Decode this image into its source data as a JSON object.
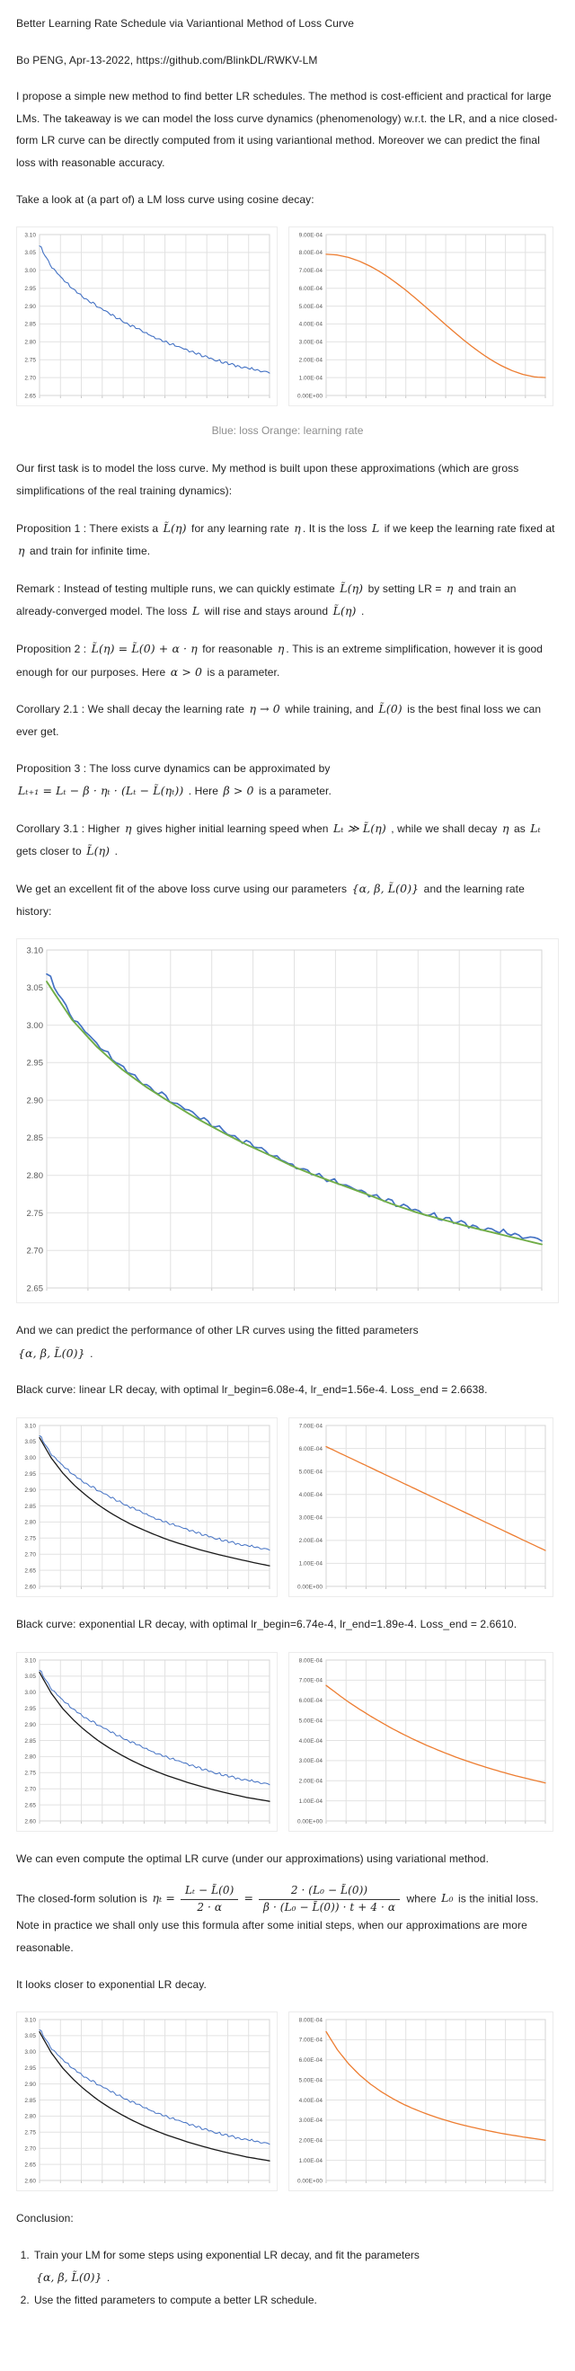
{
  "doc": {
    "title": "Better Learning Rate Schedule via Variantional Method of Loss Curve",
    "byline": "Bo PENG, Apr-13-2022, https://github.com/BlinkDL/RWKV-LM",
    "intro": "I propose a simple new method to find better LR schedules. The method is cost-efficient and practical for large LMs. The takeaway is we can model the loss curve dynamics (phenomenology) w.r.t. the LR, and a nice closed-form LR curve can be directly computed from it using variantional method. Moreover we can predict the final loss with reasonable accuracy.",
    "take_a_look": "Take a look at (a part of) a LM loss curve using cosine decay:",
    "caption1": "Blue: loss Orange: learning rate",
    "first_task": "Our first task is to model the loss curve. My method is built upon these approximations (which are gross simplifications of the real training dynamics):",
    "prop1": {
      "segments": [
        {
          "t": "Proposition 1 : There exists a "
        },
        {
          "m": "L̃(η)"
        },
        {
          "t": " for any learning rate "
        },
        {
          "m": "η"
        },
        {
          "t": ". It is the loss "
        },
        {
          "m": "L"
        },
        {
          "t": " if we keep the learning rate fixed at "
        },
        {
          "m": "η"
        },
        {
          "t": " and train for infinite time."
        }
      ]
    },
    "remark": {
      "segments": [
        {
          "t": "Remark : Instead of testing multiple runs, we can quickly estimate "
        },
        {
          "m": "L̃(η)"
        },
        {
          "t": " by setting LR = "
        },
        {
          "m": "η"
        },
        {
          "t": " and train an already-converged model. The loss "
        },
        {
          "m": "L"
        },
        {
          "t": " will rise and stays around "
        },
        {
          "m": "L̃(η)"
        },
        {
          "t": " ."
        }
      ]
    },
    "prop2": {
      "segments": [
        {
          "t": "Proposition 2 : "
        },
        {
          "m": "L̃(η) = L̃(0) + α · η"
        },
        {
          "t": " for reasonable "
        },
        {
          "m": "η"
        },
        {
          "t": ". This is an extreme simplification, however it is good enough for our purposes. Here "
        },
        {
          "m": "α > 0"
        },
        {
          "t": " is a parameter."
        }
      ]
    },
    "cor21": {
      "segments": [
        {
          "t": "Corollary 2.1 : We shall decay the learning rate "
        },
        {
          "m": "η → 0"
        },
        {
          "t": " while training, and "
        },
        {
          "m": "L̃(0)"
        },
        {
          "t": " is the best final loss we can ever get."
        }
      ]
    },
    "prop3": {
      "segments": [
        {
          "t": "Proposition 3 : The loss curve dynamics can be approximated by"
        },
        {
          "br": true
        },
        {
          "m": "Lₜ₊₁ = Lₜ − β · ηₜ · (Lₜ − L̃(ηₜ))"
        },
        {
          "t": " . Here "
        },
        {
          "m": "β > 0"
        },
        {
          "t": " is a parameter."
        }
      ]
    },
    "cor31": {
      "segments": [
        {
          "t": "Corollary 3.1 : Higher "
        },
        {
          "m": "η"
        },
        {
          "t": " gives higher initial learning speed when "
        },
        {
          "m": "Lₜ ≫ L̃(η)"
        },
        {
          "t": " , while we shall decay "
        },
        {
          "m": "η"
        },
        {
          "t": " as "
        },
        {
          "m": "Lₜ"
        },
        {
          "t": " gets closer to "
        },
        {
          "m": "L̃(η)"
        },
        {
          "t": " ."
        }
      ]
    },
    "excellent_fit": {
      "segments": [
        {
          "t": "We get an excellent fit of the above loss curve using our parameters "
        },
        {
          "m": "{α, β, L̃(0)}"
        },
        {
          "t": " and the learning rate history:"
        }
      ]
    },
    "predict": {
      "segments": [
        {
          "t": "And we can predict the performance of other LR curves using the fitted parameters"
        },
        {
          "br": true
        },
        {
          "m": "{α, β, L̃(0)}"
        },
        {
          "t": " ."
        }
      ]
    },
    "linear_label": "Black curve: linear LR decay, with optimal lr_begin=6.08e-4, lr_end=1.56e-4. Loss_end = 2.6638.",
    "exp_label": "Black curve: exponential LR decay, with optimal lr_begin=6.74e-4, lr_end=1.89e-4. Loss_end = 2.6610.",
    "compute_optimal": "We can even compute the optimal LR curve (under our approximations) using variational method.",
    "closed_form": {
      "segments": [
        {
          "t": "The closed-form solution is "
        },
        {
          "m": "ηₜ ="
        },
        {
          "frac": {
            "num": "Lₜ − L̃(0)",
            "den": "2 · α"
          }
        },
        {
          "m": "="
        },
        {
          "frac": {
            "num": "2 · (L₀ − L̃(0))",
            "den": "β · (L₀ − L̃(0)) · t + 4 · α"
          }
        },
        {
          "t": " where "
        },
        {
          "m": "L₀"
        },
        {
          "t": " is the initial loss. Note in practice we shall only use this formula after some initial steps, when our approximations are more reasonable."
        }
      ]
    },
    "looks_closer": "It looks closer to exponential LR decay.",
    "conclusion_head": "Conclusion:",
    "item1": {
      "segments": [
        {
          "t": "Train your LM for some steps using exponential LR decay, and fit the parameters"
        },
        {
          "br": true
        },
        {
          "m": "{α, β, L̃(0)}"
        },
        {
          "t": " ."
        }
      ]
    },
    "item2": "Use the fitted parameters to compute a better LR schedule."
  },
  "chart_data": {
    "note": "Loss curves in nats; LR curves in units of 1e-4.",
    "colors": {
      "loss_blue": "#4472c4",
      "lr_orange": "#ed7d31",
      "fit_green": "#70ad47",
      "pred_black": "#1a1a1a"
    },
    "curves": {
      "loss_observed": {
        "x_range": [
          0,
          1
        ],
        "y": [
          3.07,
          3.012,
          2.975,
          2.945,
          2.921,
          2.9,
          2.88,
          2.862,
          2.845,
          2.83,
          2.813,
          2.8,
          2.788,
          2.776,
          2.763,
          2.752,
          2.743,
          2.734,
          2.727,
          2.72,
          2.715
        ]
      },
      "loss_fit": {
        "x_range": [
          0,
          1
        ],
        "y": [
          3.058,
          3.008,
          2.972,
          2.942,
          2.918,
          2.897,
          2.877,
          2.859,
          2.842,
          2.827,
          2.811,
          2.798,
          2.786,
          2.774,
          2.761,
          2.75,
          2.741,
          2.732,
          2.724,
          2.716,
          2.708
        ]
      },
      "loss_pred_linear": {
        "x_range": [
          0,
          1
        ],
        "y": [
          3.062,
          3.0,
          2.953,
          2.915,
          2.884,
          2.856,
          2.832,
          2.811,
          2.792,
          2.776,
          2.761,
          2.747,
          2.735,
          2.724,
          2.713,
          2.704,
          2.695,
          2.687,
          2.679,
          2.671,
          2.664
        ]
      },
      "loss_pred_exp": {
        "x_range": [
          0,
          1
        ],
        "y": [
          3.062,
          2.998,
          2.95,
          2.912,
          2.88,
          2.852,
          2.828,
          2.807,
          2.788,
          2.771,
          2.756,
          2.742,
          2.73,
          2.718,
          2.708,
          2.698,
          2.689,
          2.681,
          2.673,
          2.667,
          2.661
        ]
      },
      "lr_cosine": {
        "x_range": [
          0,
          1
        ],
        "y_unit": "1e-4",
        "y": [
          7.9,
          7.86,
          7.73,
          7.52,
          7.24,
          6.89,
          6.48,
          6.02,
          5.52,
          4.99,
          4.45,
          3.91,
          3.38,
          2.88,
          2.42,
          2.01,
          1.66,
          1.38,
          1.17,
          1.04,
          1.0
        ]
      },
      "lr_linear": {
        "x_range": [
          0,
          1
        ],
        "y_unit": "1e-4",
        "y": [
          6.08,
          1.56
        ]
      },
      "lr_exponential": {
        "x_range": [
          0,
          1
        ],
        "y_unit": "1e-4",
        "y": [
          6.74,
          6.33,
          5.93,
          5.57,
          5.23,
          4.91,
          4.6,
          4.32,
          4.05,
          3.8,
          3.57,
          3.35,
          3.14,
          2.95,
          2.77,
          2.6,
          2.44,
          2.29,
          2.15,
          2.02,
          1.89
        ]
      },
      "lr_optimal": {
        "x_range": [
          0,
          1
        ],
        "y_unit": "1e-4",
        "y": [
          7.4,
          6.52,
          5.83,
          5.27,
          4.81,
          4.42,
          4.09,
          3.8,
          3.56,
          3.34,
          3.15,
          2.98,
          2.82,
          2.69,
          2.56,
          2.45,
          2.34,
          2.25,
          2.16,
          2.08,
          2.0
        ]
      }
    },
    "charts": {
      "pair1_left": {
        "type": "line",
        "yticks": [
          "3.10",
          "3.05",
          "3.00",
          "2.95",
          "2.90",
          "2.85",
          "2.80",
          "2.75",
          "2.70",
          "2.65"
        ],
        "ylim": [
          2.65,
          3.1
        ],
        "cols": 11,
        "series": [
          {
            "curve": "loss_observed",
            "color": "#4472c4",
            "noisy": true,
            "amp": 0.0045,
            "width": 1.1
          }
        ]
      },
      "pair1_right": {
        "type": "line",
        "yticks": [
          "9.00E-04",
          "8.00E-04",
          "7.00E-04",
          "6.00E-04",
          "5.00E-04",
          "4.00E-04",
          "3.00E-04",
          "2.00E-04",
          "1.00E-04",
          "0.00E+00"
        ],
        "ylim": [
          0,
          9
        ],
        "cols": 11,
        "series": [
          {
            "curve": "lr_cosine",
            "color": "#ed7d31",
            "width": 1.3
          }
        ]
      },
      "fit_big": {
        "type": "line",
        "yticks": [
          "3.10",
          "3.05",
          "3.00",
          "2.95",
          "2.90",
          "2.85",
          "2.80",
          "2.75",
          "2.70",
          "2.65"
        ],
        "ylim": [
          2.65,
          3.1
        ],
        "cols": 12,
        "series": [
          {
            "curve": "loss_observed",
            "color": "#4472c4",
            "noisy": true,
            "amp": 0.0045,
            "width": 1.7
          },
          {
            "curve": "loss_fit",
            "color": "#70ad47",
            "width": 1.9
          }
        ]
      },
      "pair2_left": {
        "type": "line",
        "yticks": [
          "3.10",
          "3.05",
          "3.00",
          "2.95",
          "2.90",
          "2.85",
          "2.80",
          "2.75",
          "2.70",
          "2.65",
          "2.60"
        ],
        "ylim": [
          2.6,
          3.1
        ],
        "cols": 11,
        "series": [
          {
            "curve": "loss_observed",
            "color": "#4472c4",
            "noisy": true,
            "amp": 0.0045,
            "width": 1.0
          },
          {
            "curve": "loss_pred_linear",
            "color": "#1a1a1a",
            "width": 1.3
          }
        ]
      },
      "pair2_right": {
        "type": "line",
        "yticks": [
          "7.00E-04",
          "6.00E-04",
          "5.00E-04",
          "4.00E-04",
          "3.00E-04",
          "2.00E-04",
          "1.00E-04",
          "0.00E+00"
        ],
        "ylim": [
          0,
          7
        ],
        "cols": 11,
        "series": [
          {
            "curve": "lr_linear",
            "color": "#ed7d31",
            "width": 1.3
          }
        ]
      },
      "pair3_left": {
        "type": "line",
        "yticks": [
          "3.10",
          "3.05",
          "3.00",
          "2.95",
          "2.90",
          "2.85",
          "2.80",
          "2.75",
          "2.70",
          "2.65",
          "2.60"
        ],
        "ylim": [
          2.6,
          3.1
        ],
        "cols": 11,
        "series": [
          {
            "curve": "loss_observed",
            "color": "#4472c4",
            "noisy": true,
            "amp": 0.0045,
            "width": 1.0
          },
          {
            "curve": "loss_pred_exp",
            "color": "#1a1a1a",
            "width": 1.3
          }
        ]
      },
      "pair3_right": {
        "type": "line",
        "yticks": [
          "8.00E-04",
          "7.00E-04",
          "6.00E-04",
          "5.00E-04",
          "4.00E-04",
          "3.00E-04",
          "2.00E-04",
          "1.00E-04",
          "0.00E+00"
        ],
        "ylim": [
          0,
          8
        ],
        "cols": 11,
        "series": [
          {
            "curve": "lr_exponential",
            "color": "#ed7d31",
            "width": 1.3
          }
        ]
      },
      "pair4_left": {
        "type": "line",
        "yticks": [
          "3.10",
          "3.05",
          "3.00",
          "2.95",
          "2.90",
          "2.85",
          "2.80",
          "2.75",
          "2.70",
          "2.65",
          "2.60"
        ],
        "ylim": [
          2.6,
          3.1
        ],
        "cols": 11,
        "series": [
          {
            "curve": "loss_observed",
            "color": "#4472c4",
            "noisy": true,
            "amp": 0.0045,
            "width": 1.0
          },
          {
            "curve": "loss_pred_exp",
            "color": "#1a1a1a",
            "width": 1.3
          }
        ]
      },
      "pair4_right": {
        "type": "line",
        "yticks": [
          "8.00E-04",
          "7.00E-04",
          "6.00E-04",
          "5.00E-04",
          "4.00E-04",
          "3.00E-04",
          "2.00E-04",
          "1.00E-04",
          "0.00E+00"
        ],
        "ylim": [
          0,
          8
        ],
        "cols": 11,
        "series": [
          {
            "curve": "lr_optimal",
            "color": "#ed7d31",
            "width": 1.3
          }
        ]
      }
    }
  }
}
